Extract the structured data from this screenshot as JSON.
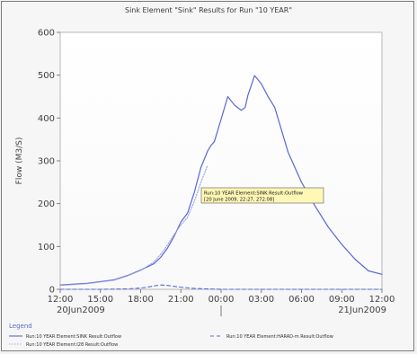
{
  "chart_data": {
    "type": "line",
    "title": "Sink Element \"Sink\" Results for Run \"10 YEAR\"",
    "ylabel": "Flow (M3/S)",
    "xlabel": "",
    "ylim": [
      0,
      600
    ],
    "grid": false,
    "x_ticks": [
      "12:00",
      "15:00",
      "18:00",
      "21:00",
      "00:00",
      "03:00",
      "06:00",
      "09:00",
      "12:00"
    ],
    "date_labels": [
      {
        "text": "20Jun2009"
      },
      {
        "text": "21Jun2009"
      }
    ],
    "y_ticks": [
      "0",
      "100",
      "200",
      "300",
      "400",
      "500",
      "600"
    ],
    "series": [
      {
        "name": "Run:10 YEAR Element:SINK Result:Outflow",
        "color": "#5a67d8",
        "dash": "solid",
        "x_hours": [
          0,
          1,
          2,
          3,
          4,
          5,
          6,
          7,
          7.5,
          8,
          8.5,
          9,
          9.5,
          10,
          10.5,
          11,
          11.25,
          11.5,
          12,
          12.5,
          13,
          13.5,
          13.8,
          14,
          14.5,
          15,
          15.5,
          16,
          17,
          18,
          19,
          20,
          21,
          22,
          23,
          24
        ],
        "values": [
          10,
          12,
          14,
          18,
          22,
          32,
          45,
          60,
          75,
          96,
          124,
          157,
          178,
          226,
          285,
          323,
          336,
          345,
          397,
          450,
          430,
          418,
          425,
          453,
          499,
          480,
          450,
          425,
          320,
          250,
          195,
          145,
          105,
          70,
          43,
          35
        ]
      },
      {
        "name": "Run:10 YEAR Element:I28 Result:Outflow",
        "color": "#9aa3e6",
        "dash": "dotted",
        "x_hours": [
          0,
          1,
          2,
          3,
          4,
          5,
          6,
          7,
          7.5,
          8,
          8.5,
          9,
          9.5,
          10,
          10.5,
          11
        ],
        "values": [
          9,
          11,
          13,
          17,
          21,
          31,
          44,
          64,
          82,
          103,
          128,
          150,
          168,
          205,
          250,
          290
        ]
      },
      {
        "name": "Run:10 YEAR Element:HARAD-m Result:Outflow",
        "color": "#5a67d8",
        "dash": "dashed",
        "x_hours": [
          0,
          3,
          5,
          6,
          6.5,
          7,
          7.5,
          8,
          9,
          10,
          11,
          12,
          14,
          16,
          18,
          20,
          22,
          24
        ],
        "values": [
          0,
          0,
          1,
          3,
          5,
          8,
          10,
          9,
          5,
          2,
          1,
          0,
          0,
          0,
          0,
          0,
          0,
          0
        ]
      }
    ],
    "tooltip": {
      "line1": "Run:10 YEAR Element:SINK Result:Outflow",
      "line2": "[20 June 2009, 22:27, 272.08]"
    },
    "legend": {
      "title": "Legend",
      "placement": "bottom",
      "items": [
        {
          "label": "Run:10 YEAR Element:SINK Result:Outflow"
        },
        {
          "label": "Run:10 YEAR Element:HARAD-m Result:Outflow"
        },
        {
          "label": "Run:10 YEAR Element:I28 Result:Outflow"
        }
      ]
    }
  }
}
